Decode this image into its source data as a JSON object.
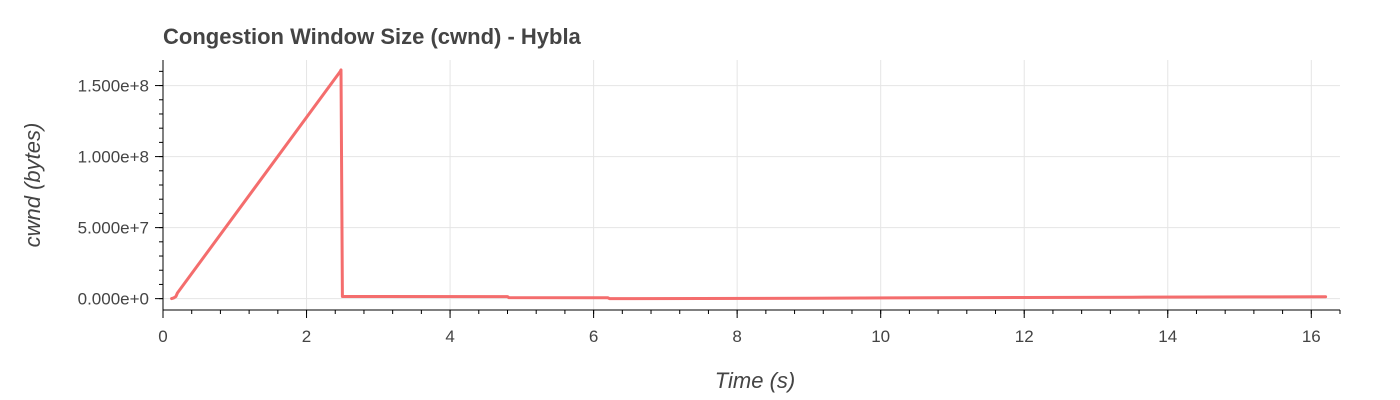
{
  "chart_data": {
    "type": "line",
    "title": "Congestion Window Size (cwnd) - Hybla",
    "xlabel": "Time (s)",
    "ylabel": "cwnd (bytes)",
    "xlim": [
      0,
      16.4
    ],
    "ylim": [
      -8000000,
      168000000
    ],
    "x_ticks": [
      0,
      2,
      4,
      6,
      8,
      10,
      12,
      14,
      16
    ],
    "x_tick_labels": [
      "0",
      "2",
      "4",
      "6",
      "8",
      "10",
      "12",
      "14",
      "16"
    ],
    "y_ticks": [
      0,
      50000000,
      100000000,
      150000000
    ],
    "y_tick_labels": [
      "0.000e+0",
      "5.000e+7",
      "1.000e+8",
      "1.500e+8"
    ],
    "grid": true,
    "series": [
      {
        "color": "#f46d6d",
        "x": [
          0.12,
          0.15,
          0.18,
          0.2,
          2.47,
          2.48,
          2.5,
          4.8,
          4.82,
          6.2,
          6.22,
          7.5,
          9.0,
          10.7,
          12.0,
          13.5,
          15.2,
          16.2
        ],
        "y": [
          0,
          500000,
          1500000,
          4000000,
          160000000,
          161000000,
          1500000,
          1400000,
          700000,
          600000,
          0,
          100000,
          300000,
          600000,
          800000,
          1000000,
          1200000,
          1300000
        ]
      }
    ]
  }
}
